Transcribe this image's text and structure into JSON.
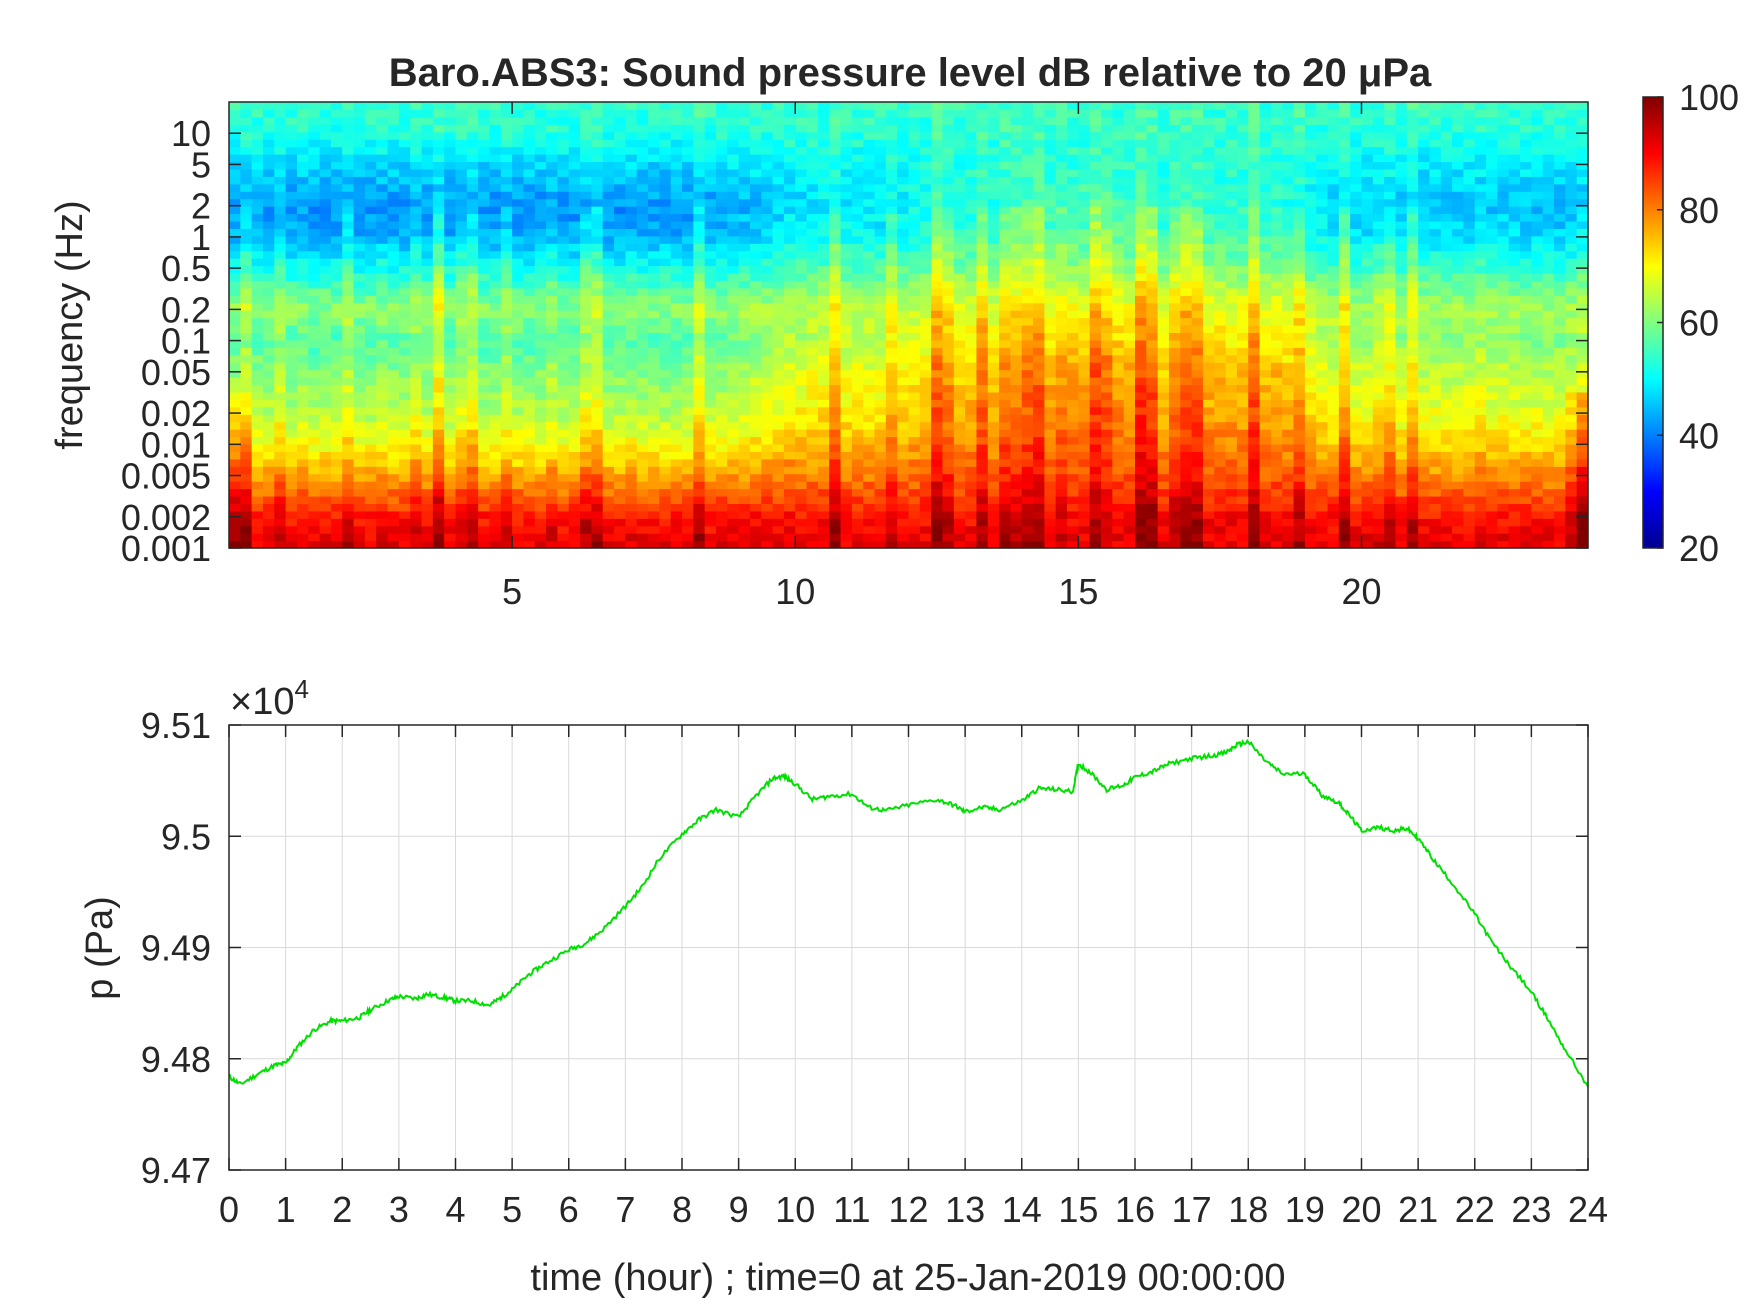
{
  "colors": {
    "line": "#00e000",
    "axis": "#262626",
    "grid": "#d9d9d9",
    "background": "#ffffff",
    "colormap": "jet"
  },
  "chart_data": [
    {
      "type": "heatmap",
      "title": "Baro.ABS3: Sound pressure level dB relative to 20 μPa",
      "xlabel": "",
      "ylabel": "frequency (Hz)",
      "x_scale": "linear",
      "y_scale": "log",
      "xlim": [
        0,
        24
      ],
      "ylim": [
        0.001,
        20
      ],
      "x_ticks": [
        5,
        10,
        15,
        20
      ],
      "x_tick_labels": [
        "5",
        "10",
        "15",
        "20"
      ],
      "y_ticks": [
        0.001,
        0.002,
        0.005,
        0.01,
        0.02,
        0.05,
        0.1,
        0.2,
        0.5,
        1,
        2,
        5,
        10
      ],
      "y_tick_labels": [
        "0.001",
        "0.002",
        "0.005",
        "0.01",
        "0.02",
        "0.05",
        "0.1",
        "0.2",
        "0.5",
        "1",
        "2",
        "5",
        "10"
      ],
      "colorbar": {
        "range": [
          20,
          100
        ],
        "ticks": [
          20,
          40,
          60,
          80,
          100
        ],
        "tick_labels": [
          "20",
          "40",
          "60",
          "80",
          "100"
        ],
        "colormap": "jet"
      },
      "grid": false,
      "description_cells_hours": [
        0,
        1,
        2,
        3,
        4,
        5,
        6,
        7,
        8,
        9,
        10,
        11,
        12,
        13,
        14,
        15,
        16,
        17,
        18,
        19,
        20,
        21,
        22,
        23
      ],
      "level_profile_db": {
        "freq_hz": [
          0.001,
          0.002,
          0.005,
          0.01,
          0.02,
          0.05,
          0.1,
          0.2,
          0.5,
          1,
          2,
          5,
          10,
          20
        ],
        "quiet_period_0_9h": [
          92,
          88,
          76,
          68,
          62,
          58,
          54,
          60,
          50,
          42,
          40,
          46,
          52,
          54
        ],
        "active_period_12_18h": [
          92,
          90,
          84,
          82,
          80,
          78,
          74,
          70,
          62,
          58,
          56,
          54,
          54,
          54
        ],
        "evening_period_19_24h": [
          92,
          88,
          82,
          78,
          70,
          62,
          56,
          60,
          52,
          48,
          48,
          50,
          54,
          54
        ]
      }
    },
    {
      "type": "line",
      "title": "",
      "xlabel": "time (hour) ; time=0 at 25-Jan-2019 00:00:00",
      "ylabel": "p (Pa)",
      "exponent_label": "×10",
      "exponent_power": "4",
      "xlim": [
        0,
        24
      ],
      "ylim": [
        94700,
        95100
      ],
      "x_ticks": [
        0,
        1,
        2,
        3,
        4,
        5,
        6,
        7,
        8,
        9,
        10,
        11,
        12,
        13,
        14,
        15,
        16,
        17,
        18,
        19,
        20,
        21,
        22,
        23,
        24
      ],
      "x_tick_labels": [
        "0",
        "1",
        "2",
        "3",
        "4",
        "5",
        "6",
        "7",
        "8",
        "9",
        "10",
        "11",
        "12",
        "13",
        "14",
        "15",
        "16",
        "17",
        "18",
        "19",
        "20",
        "21",
        "22",
        "23",
        "24"
      ],
      "y_ticks": [
        94700,
        94800,
        94900,
        95000,
        95100
      ],
      "y_tick_labels": [
        "9.47",
        "9.48",
        "9.49",
        "9.5",
        "9.51"
      ],
      "grid": true,
      "series": [
        {
          "x": [
            0,
            0.2,
            0.5,
            0.8,
            1.0,
            1.2,
            1.5,
            1.8,
            2.0,
            2.3,
            2.5,
            2.8,
            3.0,
            3.3,
            3.5,
            3.8,
            4.0,
            4.3,
            4.6,
            4.8,
            5.0,
            5.3,
            5.6,
            6.0,
            6.3,
            6.6,
            7.0,
            7.3,
            7.6,
            8.0,
            8.3,
            8.6,
            9.0,
            9.3,
            9.6,
            9.8,
            10.0,
            10.3,
            10.6,
            11.0,
            11.3,
            11.6,
            12.0,
            12.5,
            12.8,
            13.0,
            13.3,
            13.6,
            14.0,
            14.3,
            14.6,
            14.9,
            15.0,
            15.2,
            15.5,
            15.8,
            16.0,
            16.3,
            16.6,
            17.0,
            17.3,
            17.6,
            17.8,
            18.0,
            18.3,
            18.6,
            19.0,
            19.3,
            19.6,
            19.8,
            20.0,
            20.3,
            20.6,
            20.8,
            21.0,
            21.3,
            21.6,
            22.0,
            22.3,
            22.6,
            23.0,
            23.3,
            23.6,
            24.0
          ],
          "y": [
            94784,
            94777,
            94786,
            94794,
            94796,
            94810,
            94826,
            94834,
            94834,
            94837,
            94844,
            94852,
            94856,
            94854,
            94858,
            94855,
            94852,
            94852,
            94848,
            94855,
            94862,
            94876,
            94886,
            94898,
            94904,
            94916,
            94937,
            94955,
            94980,
            95002,
            95015,
            95024,
            95017,
            95036,
            95052,
            95054,
            95047,
            95033,
            95036,
            95038,
            95026,
            95023,
            95028,
            95033,
            95028,
            95022,
            95026,
            95024,
            95032,
            95043,
            95042,
            95040,
            95065,
            95058,
            95042,
            95046,
            95053,
            95058,
            95065,
            95070,
            95072,
            95075,
            95082,
            95085,
            95068,
            95056,
            95056,
            95037,
            95030,
            95018,
            95005,
            95008,
            95005,
            95007,
            94998,
            94977,
            94958,
            94930,
            94905,
            94885,
            94860,
            94835,
            94808,
            94775
          ]
        }
      ]
    }
  ]
}
